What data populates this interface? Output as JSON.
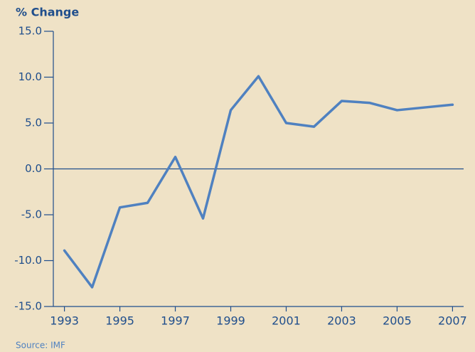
{
  "chart_data": {
    "type": "line",
    "y_label": "% Change",
    "source": "Source: IMF",
    "x": [
      1993,
      1994,
      1995,
      1996,
      1997,
      1998,
      1999,
      2000,
      2001,
      2002,
      2003,
      2004,
      2005,
      2006,
      2007
    ],
    "series": [
      {
        "name": "% Change",
        "color": "#4f81c0",
        "values": [
          -8.9,
          -12.9,
          -4.2,
          -3.7,
          1.3,
          -5.4,
          6.4,
          10.1,
          5.0,
          4.6,
          7.4,
          7.2,
          6.4,
          6.7,
          7.0
        ]
      }
    ],
    "xlim": [
      1992.6,
      2007.4
    ],
    "xticks": [
      1993,
      1995,
      1997,
      1999,
      2001,
      2003,
      2005,
      2007
    ],
    "ylim": [
      -15,
      15
    ],
    "yticks": [
      {
        "value": -15,
        "label": "-15.0"
      },
      {
        "value": -10,
        "label": "-10.0"
      },
      {
        "value": -5,
        "label": "-5.0"
      },
      {
        "value": 0,
        "label": "0.0"
      },
      {
        "value": 5,
        "label": "5.0"
      },
      {
        "value": 10,
        "label": "10.0"
      },
      {
        "value": 15,
        "label": "15.0"
      }
    ]
  }
}
